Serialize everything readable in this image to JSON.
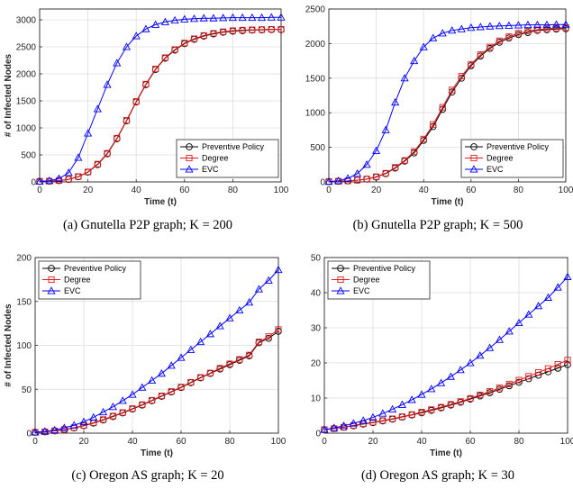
{
  "chart_data": [
    {
      "type": "line",
      "caption": "(a)  Gnutella P2P graph; K = 200",
      "xlabel": "Time (t)",
      "ylabel": "# of Infected Nodes",
      "xlim": [
        0,
        100
      ],
      "ylim": [
        0,
        3200
      ],
      "xticks": [
        0,
        20,
        40,
        60,
        80,
        100
      ],
      "yticks": [
        0,
        500,
        1000,
        1500,
        2000,
        2500,
        3000
      ],
      "grid": true,
      "legend_position": "lower-right",
      "x": [
        0,
        4,
        8,
        12,
        16,
        20,
        24,
        28,
        32,
        36,
        40,
        44,
        48,
        52,
        56,
        60,
        64,
        68,
        72,
        76,
        80,
        84,
        88,
        92,
        96,
        100
      ],
      "series": [
        {
          "name": "Preventive Policy",
          "color": "#000000",
          "marker": "circle",
          "values": [
            10,
            15,
            25,
            45,
            95,
            180,
            320,
            520,
            800,
            1130,
            1480,
            1800,
            2080,
            2290,
            2440,
            2560,
            2640,
            2700,
            2740,
            2770,
            2790,
            2800,
            2810,
            2815,
            2820,
            2820
          ]
        },
        {
          "name": "Degree",
          "color": "#e41a1c",
          "marker": "square",
          "values": [
            10,
            15,
            27,
            48,
            100,
            185,
            330,
            530,
            810,
            1140,
            1490,
            1810,
            2090,
            2300,
            2450,
            2570,
            2650,
            2710,
            2750,
            2780,
            2800,
            2810,
            2815,
            2820,
            2825,
            2825
          ]
        },
        {
          "name": "EVC",
          "color": "#0000ff",
          "marker": "triangle",
          "values": [
            10,
            20,
            60,
            170,
            450,
            900,
            1350,
            1800,
            2200,
            2500,
            2700,
            2830,
            2910,
            2960,
            2990,
            3010,
            3020,
            3030,
            3030,
            3035,
            3040,
            3040,
            3040,
            3040,
            3045,
            3045
          ]
        }
      ]
    },
    {
      "type": "line",
      "caption": "(b)  Gnutella P2P graph; K = 500",
      "xlabel": "Time (t)",
      "ylabel": "",
      "xlim": [
        0,
        100
      ],
      "ylim": [
        0,
        2500
      ],
      "xticks": [
        0,
        20,
        40,
        60,
        80,
        100
      ],
      "yticks": [
        0,
        500,
        1000,
        1500,
        2000,
        2500
      ],
      "grid": true,
      "legend_position": "lower-right",
      "x": [
        0,
        4,
        8,
        12,
        16,
        20,
        24,
        28,
        32,
        36,
        40,
        44,
        48,
        52,
        56,
        60,
        64,
        68,
        72,
        76,
        80,
        84,
        88,
        92,
        96,
        100
      ],
      "series": [
        {
          "name": "Preventive Policy",
          "color": "#000000",
          "marker": "circle",
          "values": [
            5,
            10,
            15,
            25,
            40,
            70,
            120,
            200,
            300,
            420,
            600,
            800,
            1050,
            1300,
            1500,
            1680,
            1820,
            1930,
            2020,
            2080,
            2130,
            2160,
            2190,
            2200,
            2210,
            2215
          ]
        },
        {
          "name": "Degree",
          "color": "#e41a1c",
          "marker": "square",
          "values": [
            5,
            10,
            15,
            25,
            42,
            75,
            125,
            210,
            310,
            440,
            620,
            830,
            1080,
            1330,
            1530,
            1700,
            1840,
            1950,
            2040,
            2100,
            2150,
            2180,
            2200,
            2215,
            2225,
            2230
          ]
        },
        {
          "name": "EVC",
          "color": "#0000ff",
          "marker": "triangle",
          "values": [
            5,
            15,
            50,
            120,
            250,
            450,
            750,
            1150,
            1500,
            1750,
            1950,
            2080,
            2150,
            2190,
            2210,
            2230,
            2240,
            2250,
            2255,
            2260,
            2265,
            2270,
            2270,
            2270,
            2275,
            2275
          ]
        }
      ]
    },
    {
      "type": "line",
      "caption": "(c)  Oregon AS graph; K = 20",
      "xlabel": "Time (t)",
      "ylabel": "# of Infected Nodes",
      "xlim": [
        0,
        100
      ],
      "ylim": [
        0,
        200
      ],
      "xticks": [
        0,
        20,
        40,
        60,
        80,
        100
      ],
      "yticks": [
        0,
        50,
        100,
        150,
        200
      ],
      "grid": true,
      "legend_position": "top-left",
      "x": [
        0,
        4,
        8,
        12,
        16,
        20,
        24,
        28,
        32,
        36,
        40,
        44,
        48,
        52,
        56,
        60,
        64,
        68,
        72,
        76,
        80,
        84,
        88,
        92,
        96,
        100
      ],
      "series": [
        {
          "name": "Preventive Policy",
          "color": "#000000",
          "marker": "circle",
          "values": [
            1,
            1.5,
            2.5,
            4,
            6,
            8.5,
            11.5,
            15,
            19,
            23,
            27.5,
            32,
            37,
            42,
            47,
            52,
            57.5,
            63,
            68,
            73,
            78,
            83,
            88,
            103,
            108,
            116
          ]
        },
        {
          "name": "Degree",
          "color": "#e41a1c",
          "marker": "square",
          "values": [
            1,
            1.6,
            2.7,
            4.2,
            6.3,
            8.8,
            12,
            15.5,
            19.5,
            23.5,
            28,
            32.5,
            37.5,
            42.5,
            47.5,
            52.5,
            58,
            63.5,
            68.5,
            74,
            79,
            84,
            89,
            104,
            110,
            118
          ]
        },
        {
          "name": "EVC",
          "color": "#0000ff",
          "marker": "triangle",
          "values": [
            1,
            2,
            3.5,
            6,
            9,
            13,
            18,
            24,
            30,
            37,
            44,
            52,
            60,
            68,
            77,
            86,
            95,
            104,
            113,
            122,
            131,
            140,
            149,
            164,
            174,
            186
          ]
        }
      ]
    },
    {
      "type": "line",
      "caption": "(d)  Oregon AS graph; K = 30",
      "xlabel": "Time (t)",
      "ylabel": "",
      "xlim": [
        0,
        100
      ],
      "ylim": [
        0,
        50
      ],
      "xticks": [
        0,
        20,
        40,
        60,
        80,
        100
      ],
      "yticks": [
        0,
        10,
        20,
        30,
        40,
        50
      ],
      "grid": true,
      "legend_position": "top-left",
      "x": [
        0,
        4,
        8,
        12,
        16,
        20,
        24,
        28,
        32,
        36,
        40,
        44,
        48,
        52,
        56,
        60,
        64,
        68,
        72,
        76,
        80,
        84,
        88,
        92,
        96,
        100
      ],
      "series": [
        {
          "name": "Preventive Policy",
          "color": "#000000",
          "marker": "circle",
          "values": [
            1,
            1.3,
            1.7,
            2.1,
            2.6,
            3,
            3.5,
            4,
            4.6,
            5.2,
            5.8,
            6.5,
            7.2,
            8,
            8.8,
            9.7,
            10.6,
            11.5,
            12.5,
            13.5,
            14.5,
            15.5,
            16.5,
            17.5,
            18.5,
            19.5
          ]
        },
        {
          "name": "Degree",
          "color": "#e41a1c",
          "marker": "square",
          "values": [
            1,
            1.3,
            1.7,
            2.2,
            2.7,
            3.1,
            3.6,
            4.1,
            4.7,
            5.3,
            6,
            6.7,
            7.4,
            8.2,
            9,
            9.9,
            10.9,
            11.9,
            12.9,
            14,
            15.1,
            16.2,
            17.3,
            18.4,
            19.6,
            20.8
          ]
        },
        {
          "name": "EVC",
          "color": "#0000ff",
          "marker": "triangle",
          "values": [
            1,
            1.5,
            2.1,
            2.8,
            3.6,
            4.5,
            5.6,
            6.8,
            8.1,
            9.5,
            11,
            12.6,
            14.3,
            16.1,
            18,
            20,
            22.1,
            24.3,
            26.6,
            29,
            31.4,
            33.8,
            36.2,
            38.6,
            41.5,
            44.5
          ]
        }
      ]
    }
  ]
}
